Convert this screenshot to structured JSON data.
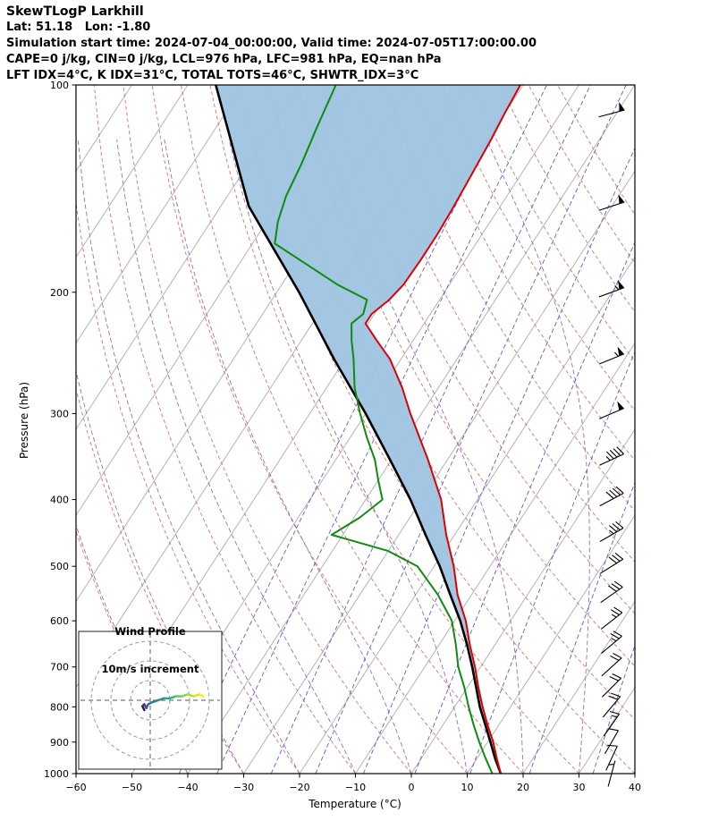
{
  "header": {
    "title": "SkewTLogP Larkhill",
    "location": "Lat: 51.18   Lon: -1.80",
    "times": "Simulation start time: 2024-07-04_00:00:00, Valid time: 2024-07-05T17:00:00.00",
    "indices1": "CAPE=0 j/kg, CIN=0 j/kg, LCL=976 hPa, LFC=981 hPa, EQ=nan hPa",
    "indices2": "LFT IDX=4°C, K IDX=31°C, TOTAL TOTS=46°C, SHWTR_IDX=3°C"
  },
  "chart_data": {
    "type": "line",
    "subtype": "skew-t-log-p-sounding",
    "title": "SkewTLogP Larkhill",
    "xlabel": "Temperature (°C)",
    "ylabel": "Pressure (hPa)",
    "xlim": [
      -60,
      40
    ],
    "pressure_lim_hpa": [
      100,
      1000
    ],
    "x_tick_values": [
      -60,
      -50,
      -40,
      -30,
      -20,
      -10,
      0,
      10,
      20,
      30,
      40
    ],
    "x_tick_labels": [
      "−60",
      "−50",
      "−40",
      "−30",
      "−20",
      "−10",
      "0",
      "10",
      "20",
      "30",
      "40"
    ],
    "y_tick_values": [
      100,
      200,
      300,
      400,
      500,
      600,
      700,
      800,
      900,
      1000
    ],
    "y_tick_labels": [
      "100",
      "200",
      "300",
      "400",
      "500",
      "600",
      "700",
      "800",
      "900",
      "1000"
    ],
    "colors": {
      "temperature": "#dd0000",
      "dewpoint": "#0e8c0e",
      "parcel": "#000000",
      "shading": "#9ec4e0",
      "isotherm": "#b3b3b3",
      "dry_adiabat": "#dd7070",
      "moist_adiabat": "#9a6cc0",
      "mixing_ratio": "#5c5cdd",
      "barb": "#000000",
      "hodo_ring": "#999999",
      "hodo_cross": "#777777"
    },
    "background_lines": {
      "isotherms_c": {
        "min": -140,
        "max": 40,
        "step": 10
      },
      "dry_adiabats_theta_c": {
        "min": -40,
        "max": 150,
        "step": 10
      },
      "moist_adiabats_start_c": [
        -40,
        -30,
        -20,
        -10,
        0,
        10,
        20,
        30
      ],
      "mixing_ratio_g_per_kg": [
        0.1,
        0.2,
        0.5,
        1,
        2,
        4,
        8,
        16,
        32
      ]
    },
    "temperature_profile": {
      "pressure": [
        1000,
        950,
        900,
        850,
        800,
        750,
        700,
        650,
        600,
        550,
        500,
        450,
        400,
        350,
        300,
        275,
        250,
        235,
        222,
        215,
        205,
        195,
        180,
        165,
        150,
        135,
        120,
        110,
        100
      ],
      "temp_c": [
        16,
        13.5,
        11,
        8,
        5,
        2,
        -1,
        -4.5,
        -8,
        -12.5,
        -16.5,
        -21.5,
        -26.5,
        -33.5,
        -42,
        -46.5,
        -52,
        -56.5,
        -60.5,
        -60.5,
        -59,
        -58.2,
        -58,
        -58,
        -58.3,
        -58.8,
        -59.4,
        -60,
        -60.5
      ]
    },
    "dewpoint_profile": {
      "pressure": [
        1000,
        950,
        900,
        850,
        800,
        750,
        700,
        650,
        600,
        550,
        500,
        475,
        450,
        425,
        400,
        375,
        350,
        325,
        300,
        275,
        250,
        235,
        222,
        215,
        205,
        195,
        182,
        170,
        158,
        145,
        130,
        115,
        100
      ],
      "temp_c": [
        14.5,
        11.5,
        8.5,
        5.5,
        2.5,
        -0.5,
        -4,
        -7,
        -10.5,
        -16,
        -23,
        -30,
        -42,
        -39,
        -37,
        -40,
        -43,
        -47,
        -51,
        -55,
        -58.5,
        -61,
        -63,
        -62,
        -63,
        -70,
        -78,
        -86,
        -88,
        -89.5,
        -90.5,
        -92,
        -93.5
      ]
    },
    "parcel_profile": {
      "pressure": [
        1000,
        950,
        900,
        850,
        800,
        750,
        700,
        650,
        600,
        550,
        500,
        450,
        400,
        350,
        300,
        250,
        200,
        150,
        100
      ],
      "temp_c": [
        16,
        13.2,
        10.5,
        7.6,
        4.5,
        1.6,
        -1.5,
        -5,
        -9,
        -13.8,
        -19,
        -25.2,
        -32,
        -40.3,
        -50,
        -62,
        -76,
        -95,
        -115
      ]
    },
    "wind_barbs": {
      "pressure": [
        1000,
        950,
        900,
        850,
        800,
        750,
        700,
        650,
        600,
        550,
        500,
        450,
        400,
        350,
        300,
        250,
        200,
        150,
        110
      ],
      "speed_kt": [
        5,
        10,
        10,
        15,
        20,
        20,
        20,
        25,
        25,
        30,
        30,
        35,
        40,
        45,
        50,
        55,
        55,
        50,
        50
      ],
      "direction_deg": [
        195,
        205,
        210,
        215,
        220,
        225,
        228,
        230,
        232,
        235,
        238,
        240,
        242,
        245,
        247,
        248,
        250,
        252,
        255
      ]
    },
    "hodograph": {
      "title_line1": "Wind Profile",
      "title_line2": "10m/s increment",
      "rings_ms": [
        10,
        20,
        30
      ],
      "u_ms": [
        -3,
        -4,
        -3,
        -2,
        -1,
        1,
        4,
        7,
        10,
        13,
        16,
        19,
        22,
        25,
        27
      ],
      "v_ms": [
        -5,
        -3,
        -2,
        -4,
        -2,
        -1,
        0,
        1,
        1,
        2,
        2,
        3,
        2,
        3,
        2
      ],
      "trace_palette": [
        "#440154",
        "#46246e",
        "#414487",
        "#375a8c",
        "#2f6e8e",
        "#27818e",
        "#21938c",
        "#22a884",
        "#2fb47c",
        "#54c568",
        "#7ad151",
        "#a5db36",
        "#d2e21b",
        "#fde725"
      ]
    }
  }
}
